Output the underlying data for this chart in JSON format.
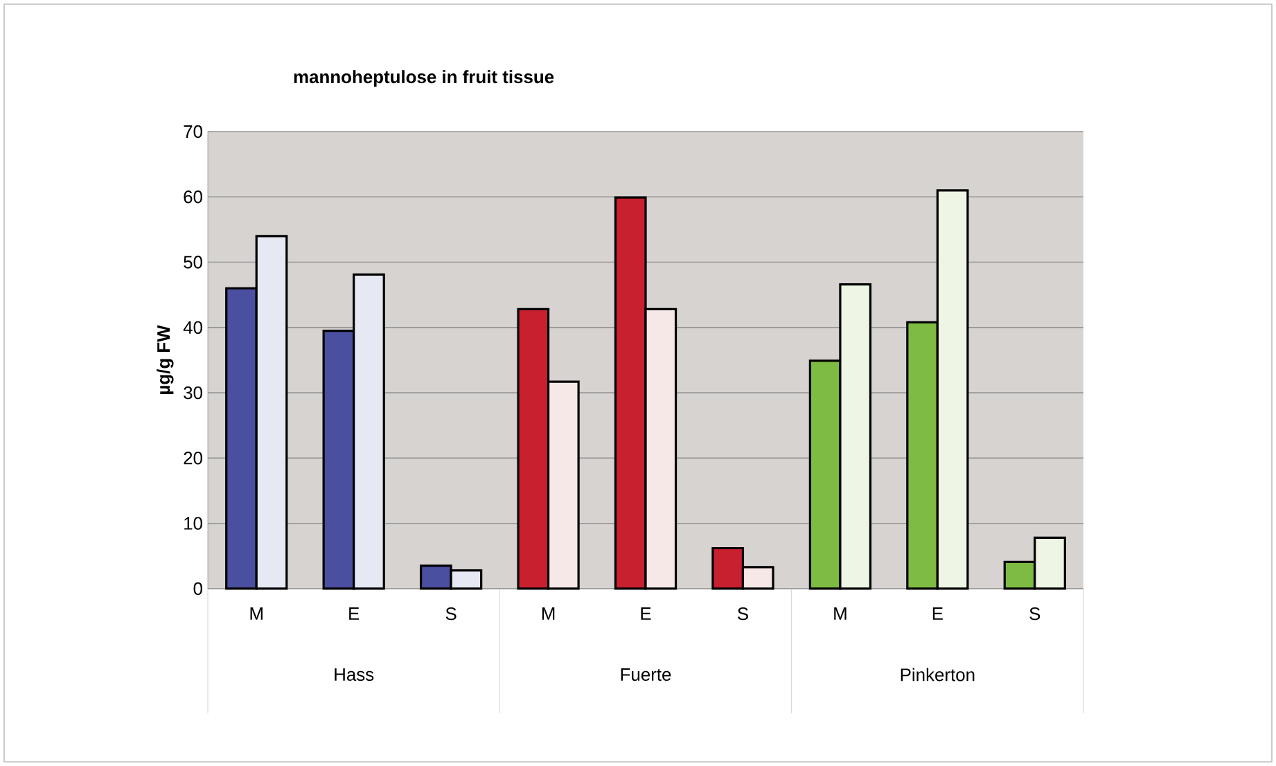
{
  "chart_data": {
    "type": "bar",
    "title": "mannoheptulose in fruit tissue",
    "ylabel": "µg/g FW",
    "categories": [
      "M",
      "E",
      "S",
      "M",
      "E",
      "S",
      "M",
      "E",
      "S"
    ],
    "annotations": [
      "Hass",
      "Fuerte",
      "Pinkerton"
    ],
    "series": [
      {
        "colors": [
          "#4b4f9f",
          "#4b4f9f",
          "#4b4f9f",
          "#c8202f",
          "#c8202f",
          "#c8202f",
          "#7dbb42",
          "#7dbb42",
          "#7dbb42"
        ],
        "values": [
          46,
          39.5,
          3.5,
          42.8,
          59.9,
          6.2,
          34.9,
          40.8,
          4.1
        ]
      },
      {
        "colors": [
          "#e6e8f3",
          "#e6e8f3",
          "#e6e8f3",
          "#f7e8e8",
          "#f7e8e8",
          "#f7e8e8",
          "#eef5e4",
          "#eef5e4",
          "#eef5e4"
        ],
        "values": [
          54,
          48.1,
          2.8,
          31.7,
          42.8,
          3.3,
          46.6,
          61,
          7.8
        ]
      }
    ],
    "ylim": [
      0,
      70
    ],
    "yticks": [
      0,
      10,
      20,
      30,
      40,
      50,
      60,
      70
    ],
    "grid": "y"
  }
}
